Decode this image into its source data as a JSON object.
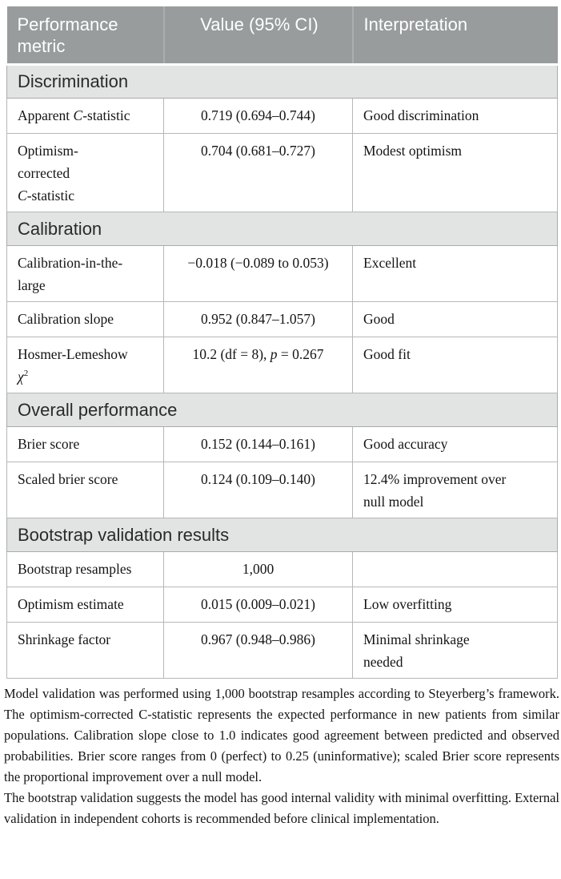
{
  "table": {
    "header": {
      "metric": "Performance metric",
      "value": "Value (95% CI)",
      "interpretation": "Interpretation"
    },
    "sections": [
      {
        "title": "Discrimination",
        "rows": [
          {
            "metric": "Apparent <i>C</i>-statistic",
            "value": "0.719 (0.694–0.744)",
            "interpretation": "Good discrimination"
          },
          {
            "metric": "Optimism-<br>corrected<br><i>C</i>-statistic",
            "value": "0.704 (0.681–0.727)",
            "interpretation": "Modest optimism"
          }
        ]
      },
      {
        "title": "Calibration",
        "rows": [
          {
            "metric": "Calibration-in-the-<br>large",
            "value": "−0.018 (−0.089 to 0.053)",
            "interpretation": "Excellent"
          },
          {
            "metric": "Calibration slope",
            "value": "0.952 (0.847–1.057)",
            "interpretation": "Good"
          },
          {
            "metric": "Hosmer-Lemeshow<br><i>χ</i><sup>2</sup>",
            "value": "10.2 (df = 8), <i>p</i> = 0.267",
            "interpretation": "Good fit"
          }
        ]
      },
      {
        "title": "Overall performance",
        "rows": [
          {
            "metric": "Brier score",
            "value": "0.152 (0.144–0.161)",
            "interpretation": "Good accuracy"
          },
          {
            "metric": "Scaled brier score",
            "value": "0.124 (0.109–0.140)",
            "interpretation": "12.4% improvement over<br>null model"
          }
        ]
      },
      {
        "title": "Bootstrap validation results",
        "rows": [
          {
            "metric": "Bootstrap resamples",
            "value": "1,000",
            "interpretation": ""
          },
          {
            "metric": "Optimism estimate",
            "value": "0.015 (0.009–0.021)",
            "interpretation": "Low overfitting"
          },
          {
            "metric": "Shrinkage factor",
            "value": "0.967 (0.948–0.986)",
            "interpretation": "Minimal shrinkage<br>needed"
          }
        ]
      }
    ]
  },
  "footnotes": [
    "Model validation was performed using 1,000 bootstrap resamples according to Steyerberg’s framework. The optimism-corrected C-statistic represents the expected performance in new patients from similar populations. Calibration slope close to 1.0 indicates good agreement between predicted and observed probabilities. Brier score ranges from 0 (perfect) to 0.25 (uninformative); scaled Brier score represents the proportional improvement over a null model.",
    "The bootstrap validation suggests the model has good internal validity with minimal overfitting. External validation in independent cohorts is recommended before clinical implementation."
  ],
  "colors": {
    "header_bg": "#989c9d",
    "header_text": "#ffffff",
    "section_bg": "#e2e3e3",
    "grid_line": "#b5b8b8"
  }
}
